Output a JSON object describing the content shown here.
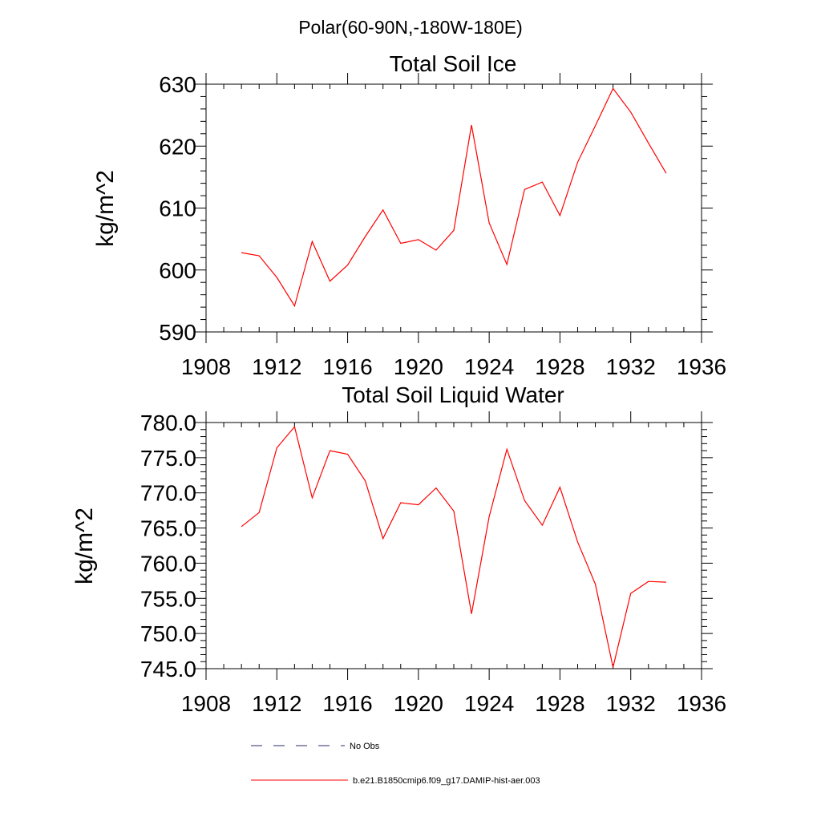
{
  "figure_title": "Polar(60-90N,-180W-180E)",
  "legend": [
    {
      "label": "No Obs",
      "color": "#2b2b6b",
      "style": "dashed"
    },
    {
      "label": "b.e21.B1850cmip6.f09_g17.DAMIP-hist-aer.003",
      "color": "#ff0000",
      "style": "solid"
    }
  ],
  "chart_data": [
    {
      "type": "line",
      "title": "Total Soil Ice",
      "xlabel": "",
      "ylabel": "kg/m^2",
      "xlim": [
        1908,
        1936
      ],
      "ylim": [
        590,
        630
      ],
      "xticks": [
        1908,
        1912,
        1916,
        1920,
        1924,
        1928,
        1932,
        1936
      ],
      "xtick_labels": [
        "1908",
        "1912",
        "1916",
        "1920",
        "1924",
        "1928",
        "1932",
        "1936"
      ],
      "yticks": [
        590,
        600,
        610,
        620,
        630
      ],
      "ytick_labels": [
        "590",
        "600",
        "610",
        "620",
        "630"
      ],
      "grid": false,
      "series": [
        {
          "name": "b.e21.B1850cmip6.f09_g17.DAMIP-hist-aer.003",
          "color": "#ff0000",
          "x": [
            1910,
            1911,
            1912,
            1913,
            1914,
            1915,
            1916,
            1917,
            1918,
            1919,
            1920,
            1921,
            1922,
            1923,
            1924,
            1925,
            1926,
            1927,
            1928,
            1929,
            1930,
            1931,
            1932,
            1933,
            1934
          ],
          "y": [
            602.8,
            602.3,
            598.8,
            594.2,
            604.6,
            598.2,
            600.8,
            605.4,
            609.7,
            604.3,
            604.9,
            603.2,
            606.4,
            623.4,
            607.6,
            600.9,
            613.0,
            614.2,
            608.8,
            617.4,
            623.3,
            629.3,
            625.5,
            620.5,
            615.6
          ]
        }
      ]
    },
    {
      "type": "line",
      "title": "Total Soil Liquid Water",
      "xlabel": "",
      "ylabel": "kg/m^2",
      "xlim": [
        1908,
        1936
      ],
      "ylim": [
        745,
        780
      ],
      "xticks": [
        1908,
        1912,
        1916,
        1920,
        1924,
        1928,
        1932,
        1936
      ],
      "xtick_labels": [
        "1908",
        "1912",
        "1916",
        "1920",
        "1924",
        "1928",
        "1932",
        "1936"
      ],
      "yticks": [
        745,
        750,
        755,
        760,
        765,
        770,
        775,
        780
      ],
      "ytick_labels": [
        "745.0",
        "750.0",
        "755.0",
        "760.0",
        "765.0",
        "770.0",
        "775.0",
        "780.0"
      ],
      "grid": false,
      "series": [
        {
          "name": "b.e21.B1850cmip6.f09_g17.DAMIP-hist-aer.003",
          "color": "#ff0000",
          "x": [
            1910,
            1911,
            1912,
            1913,
            1914,
            1915,
            1916,
            1917,
            1918,
            1919,
            1920,
            1921,
            1922,
            1923,
            1924,
            1925,
            1926,
            1927,
            1928,
            1929,
            1930,
            1931,
            1932,
            1933,
            1934
          ],
          "y": [
            765.2,
            767.2,
            776.4,
            779.4,
            769.3,
            776.0,
            775.5,
            771.7,
            763.5,
            768.6,
            768.3,
            770.7,
            767.4,
            752.8,
            766.6,
            776.2,
            768.9,
            765.4,
            770.8,
            763.0,
            757.0,
            745.2,
            755.7,
            757.4,
            757.3
          ]
        }
      ]
    }
  ]
}
